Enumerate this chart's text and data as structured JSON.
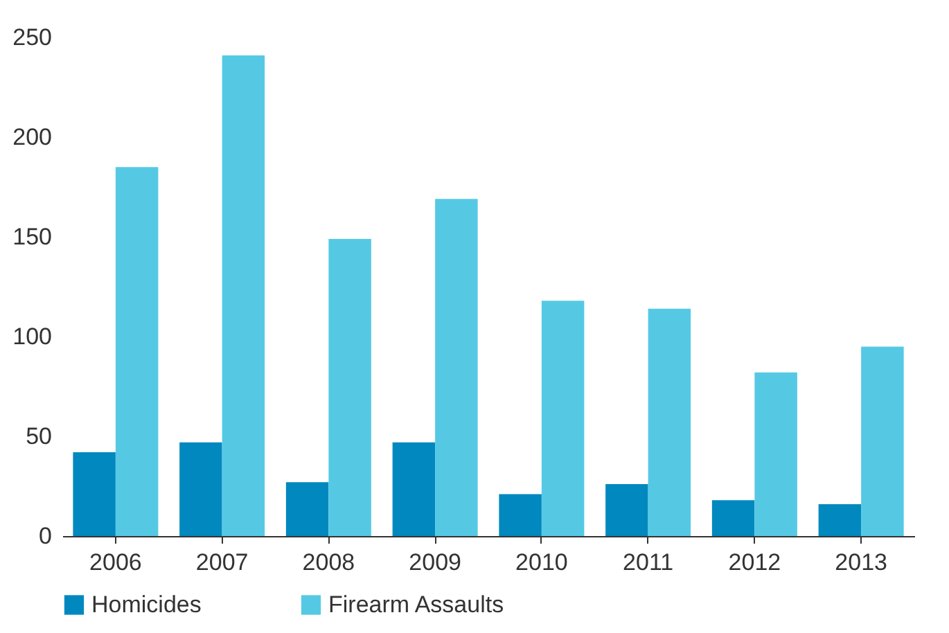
{
  "chart_data": {
    "type": "bar",
    "categories": [
      "2006",
      "2007",
      "2008",
      "2009",
      "2010",
      "2011",
      "2012",
      "2013"
    ],
    "series": [
      {
        "name": "Homicides",
        "color": "#0088bf",
        "values": [
          42,
          47,
          27,
          47,
          21,
          26,
          18,
          16
        ]
      },
      {
        "name": "Firearm Assaults",
        "color": "#55c9e4",
        "values": [
          185,
          241,
          149,
          169,
          118,
          114,
          82,
          95
        ]
      }
    ],
    "ylim": [
      0,
      250
    ],
    "yticks": [
      0,
      50,
      100,
      150,
      200,
      250
    ],
    "grid": false,
    "legend": "bottom"
  }
}
